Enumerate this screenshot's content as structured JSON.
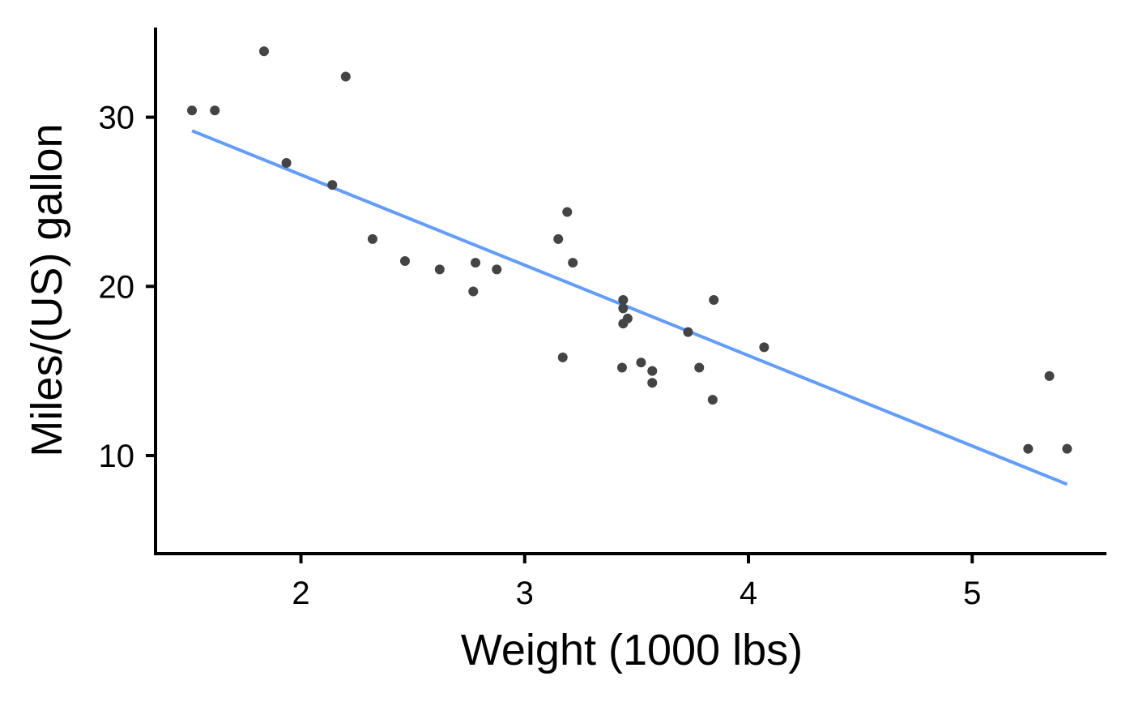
{
  "chart_data": {
    "type": "scatter",
    "title": "",
    "xlabel": "Weight (1000 lbs)",
    "ylabel": "Miles/(US) gallon",
    "xlim": [
      1.35,
      5.6
    ],
    "ylim": [
      4.2,
      35.3
    ],
    "x_ticks": [
      2,
      3,
      4,
      5
    ],
    "y_ticks": [
      10,
      20,
      30
    ],
    "x_tick_labels": [
      "2",
      "3",
      "4",
      "5"
    ],
    "y_tick_labels": [
      "10",
      "20",
      "30"
    ],
    "grid": false,
    "legend": "none",
    "series": [
      {
        "values": [
          {
            "x": 2.62,
            "y": 21.0
          },
          {
            "x": 2.875,
            "y": 21.0
          },
          {
            "x": 2.32,
            "y": 22.8
          },
          {
            "x": 3.215,
            "y": 21.4
          },
          {
            "x": 3.44,
            "y": 18.7
          },
          {
            "x": 3.46,
            "y": 18.1
          },
          {
            "x": 3.57,
            "y": 14.3
          },
          {
            "x": 3.19,
            "y": 24.4
          },
          {
            "x": 3.15,
            "y": 22.8
          },
          {
            "x": 3.44,
            "y": 19.2
          },
          {
            "x": 3.44,
            "y": 17.8
          },
          {
            "x": 4.07,
            "y": 16.4
          },
          {
            "x": 3.73,
            "y": 17.3
          },
          {
            "x": 3.78,
            "y": 15.2
          },
          {
            "x": 5.25,
            "y": 10.4
          },
          {
            "x": 5.424,
            "y": 10.4
          },
          {
            "x": 5.345,
            "y": 14.7
          },
          {
            "x": 2.2,
            "y": 32.4
          },
          {
            "x": 1.615,
            "y": 30.4
          },
          {
            "x": 1.835,
            "y": 33.9
          },
          {
            "x": 2.465,
            "y": 21.5
          },
          {
            "x": 3.52,
            "y": 15.5
          },
          {
            "x": 3.435,
            "y": 15.2
          },
          {
            "x": 3.84,
            "y": 13.3
          },
          {
            "x": 3.845,
            "y": 19.2
          },
          {
            "x": 1.935,
            "y": 27.3
          },
          {
            "x": 2.14,
            "y": 26.0
          },
          {
            "x": 1.513,
            "y": 30.4
          },
          {
            "x": 3.17,
            "y": 15.8
          },
          {
            "x": 2.77,
            "y": 19.7
          },
          {
            "x": 3.57,
            "y": 15.0
          },
          {
            "x": 2.78,
            "y": 21.4
          }
        ]
      }
    ],
    "fit_line": {
      "x": [
        1.513,
        5.424
      ],
      "y": [
        29.2,
        8.3
      ]
    },
    "colors": {
      "points": "#444444",
      "fit_line": "#619CFF",
      "axis": "#000000"
    }
  }
}
